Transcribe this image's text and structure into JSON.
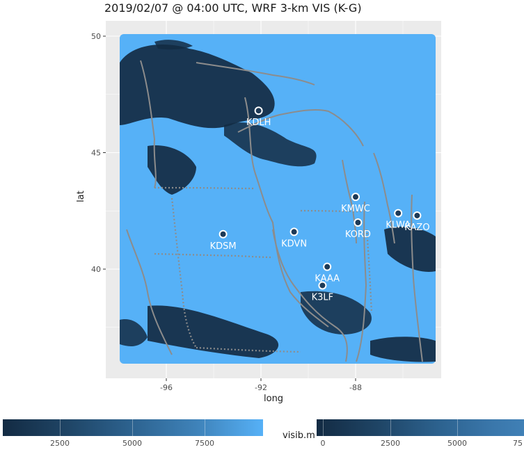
{
  "title": "2019/02/07 @ 04:00 UTC, WRF 3-km VIS (K-G)",
  "axes": {
    "xlabel": "long",
    "ylabel": "lat",
    "xticks": [
      "-96",
      "-92",
      "-88"
    ],
    "yticks": [
      "50",
      "45",
      "40"
    ]
  },
  "colors": {
    "panel_bg": "#ebebeb",
    "grid": "#ffffff",
    "high_visibility": "#56b1f7",
    "low_visibility": "#132b43",
    "boundaries": "#8c8c8c",
    "station_fill": "#1d3a57",
    "station_text": "#ffffff"
  },
  "stations": [
    {
      "id": "KDLH",
      "lon": -92.1,
      "lat": 46.8
    },
    {
      "id": "KMWC",
      "lon": -88.0,
      "lat": 43.1
    },
    {
      "id": "KLWA",
      "lon": -86.2,
      "lat": 42.4
    },
    {
      "id": "KAZO",
      "lon": -85.4,
      "lat": 42.3
    },
    {
      "id": "KORD",
      "lon": -87.9,
      "lat": 42.0
    },
    {
      "id": "KDSM",
      "lon": -93.6,
      "lat": 41.5
    },
    {
      "id": "KDVN",
      "lon": -90.6,
      "lat": 41.6
    },
    {
      "id": "KAAA",
      "lon": -89.2,
      "lat": 40.1
    },
    {
      "id": "K3LF",
      "lon": -89.4,
      "lat": 39.3
    }
  ],
  "legend": {
    "title": "visib.m",
    "left_bar_labels": [
      "2500",
      "5000",
      "7500"
    ],
    "right_bar_labels": [
      "0",
      "2500",
      "5000",
      "75"
    ]
  }
}
